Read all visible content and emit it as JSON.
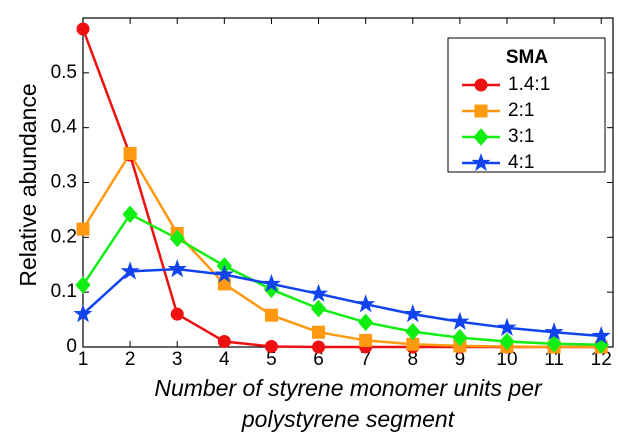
{
  "chart_data": {
    "type": "line",
    "xlabel": [
      "Number of styrene monomer units per",
      "polystyrene segment"
    ],
    "ylabel": "Relative abundance",
    "legend_title": "SMA",
    "legend": "upper right",
    "x": [
      1,
      2,
      3,
      4,
      5,
      6,
      7,
      8,
      9,
      10,
      11,
      12
    ],
    "series": [
      {
        "name": "1.4:1",
        "color": "#ee1111",
        "marker": "circle",
        "values": [
          0.58,
          0.35,
          0.06,
          0.01,
          0.001,
          0,
          0,
          0,
          0,
          0,
          0,
          0
        ]
      },
      {
        "name": "2:1",
        "color": "#ff9911",
        "marker": "square",
        "values": [
          0.215,
          0.353,
          0.207,
          0.115,
          0.058,
          0.027,
          0.012,
          0.005,
          0.002,
          0.001,
          0,
          0
        ]
      },
      {
        "name": "3:1",
        "color": "#11ee11",
        "marker": "diamond",
        "values": [
          0.113,
          0.242,
          0.198,
          0.148,
          0.105,
          0.07,
          0.045,
          0.028,
          0.017,
          0.01,
          0.006,
          0.004
        ]
      },
      {
        "name": "4:1",
        "color": "#1144ee",
        "marker": "star",
        "values": [
          0.06,
          0.138,
          0.142,
          0.132,
          0.115,
          0.097,
          0.078,
          0.06,
          0.046,
          0.035,
          0.027,
          0.02
        ]
      }
    ],
    "xlim": [
      1,
      12.25
    ],
    "xticks": [
      1,
      2,
      3,
      4,
      5,
      6,
      7,
      8,
      9,
      10,
      11,
      12
    ],
    "ylim": [
      0,
      0.6
    ],
    "yticks": [
      0,
      0.1,
      0.2,
      0.3,
      0.4,
      0.5
    ],
    "grid": false
  }
}
